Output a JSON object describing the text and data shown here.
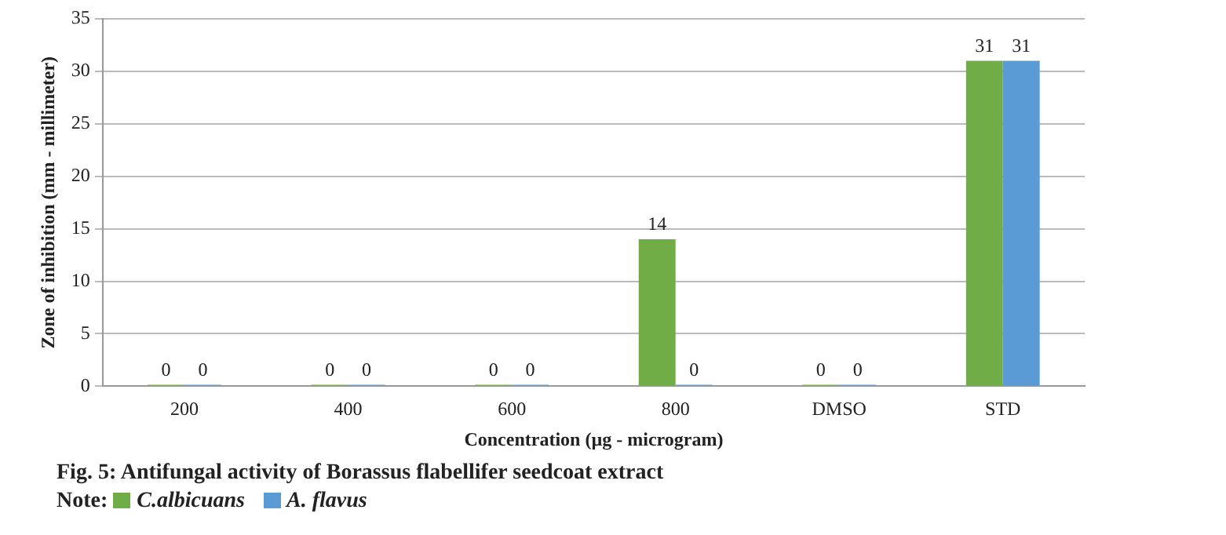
{
  "chart_data": {
    "type": "bar",
    "title": "Fig. 5: Antifungal activity of Borassus flabellifer seedcoat extract",
    "xlabel": "Concentration (µg - microgram)",
    "ylabel": "Zone of inhibition (mm - millimeter)",
    "legend_title": "Note:",
    "categories": [
      "200",
      "400",
      "600",
      "800",
      "DMSO",
      "STD"
    ],
    "series": [
      {
        "name": "C.albicuans",
        "color": "#70ad47",
        "values": [
          0,
          0,
          0,
          14,
          0,
          31
        ]
      },
      {
        "name": "A. flavus",
        "color": "#5b9bd5",
        "values": [
          0,
          0,
          0,
          0,
          0,
          31
        ]
      }
    ],
    "ylim": [
      0,
      35
    ],
    "yticks": [
      0,
      5,
      10,
      15,
      20,
      25,
      30,
      35
    ],
    "grid": "y",
    "data_labels": true,
    "legend": "bottom"
  }
}
